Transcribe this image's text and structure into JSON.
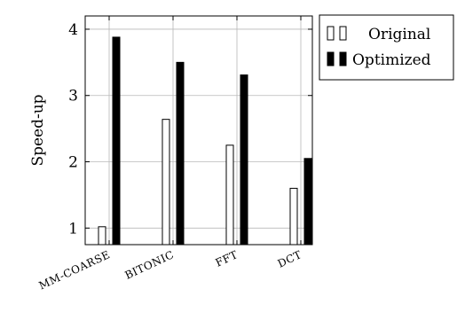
{
  "chart_data": {
    "type": "bar",
    "ylabel": "Speed-up",
    "xlabel": "",
    "categories": [
      "MM-COARSE",
      "BITONIC",
      "FFT",
      "DCT"
    ],
    "ylim": [
      0.75,
      4.2
    ],
    "yticks": [
      1,
      2,
      3,
      4
    ],
    "grid": true,
    "legend_position": "outside-right-top",
    "series": [
      {
        "name": "Original",
        "values": [
          1.02,
          2.64,
          2.25,
          1.6
        ],
        "fill": "#ffffff",
        "stroke": "#000000"
      },
      {
        "name": "Optimized",
        "values": [
          3.88,
          3.5,
          3.31,
          2.05
        ],
        "fill": "#000000",
        "stroke": "#000000"
      }
    ]
  }
}
